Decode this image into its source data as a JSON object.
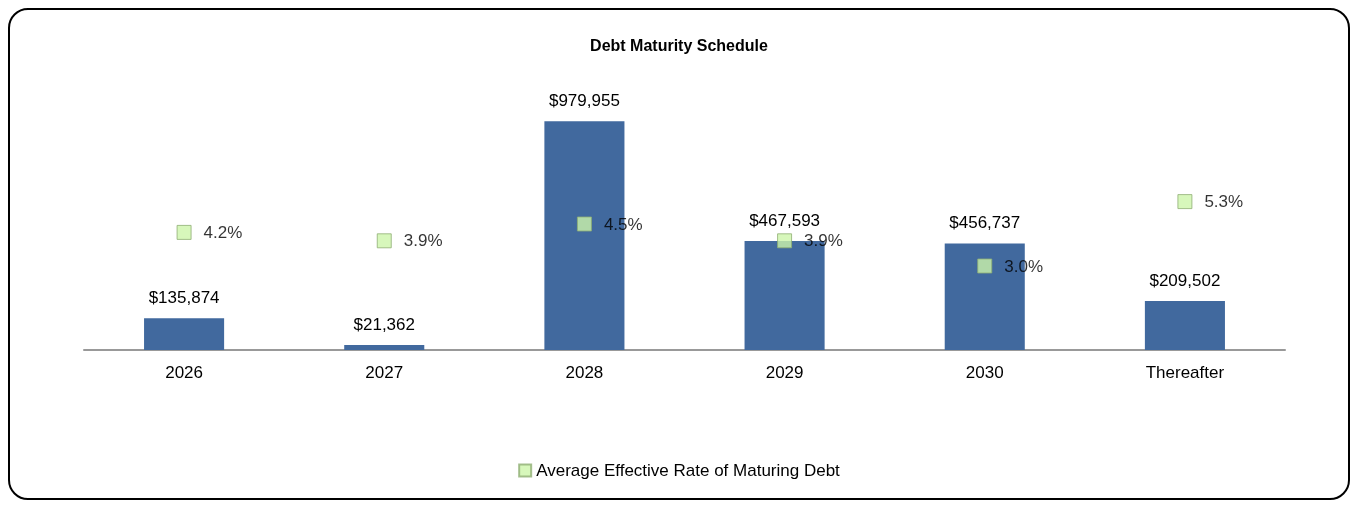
{
  "chart_data": {
    "type": "bar",
    "title": "Debt Maturity Schedule",
    "categories": [
      "2026",
      "2027",
      "2028",
      "2029",
      "2030",
      "Thereafter"
    ],
    "series": [
      {
        "color": "#41699e",
        "values": [
          135874,
          21362,
          979955,
          467593,
          456737,
          209502
        ],
        "value_labels": [
          "$135,874",
          "$21,362",
          "$979,955",
          "$467,593",
          "$456,737",
          "$209,502"
        ]
      },
      {
        "type": "scatter",
        "name": "Average Effective Rate of Maturing Debt",
        "axis": "y2",
        "color": "#cdf5aa",
        "marker": "square",
        "values": [
          4.2,
          3.9,
          4.5,
          3.9,
          3.0,
          5.3
        ],
        "value_labels": [
          "4.2%",
          "3.9%",
          "4.5%",
          "3.9%",
          "3.0%",
          "5.3%"
        ]
      }
    ],
    "tick_labels": "x",
    "grid": false,
    "legend": "bottom"
  }
}
